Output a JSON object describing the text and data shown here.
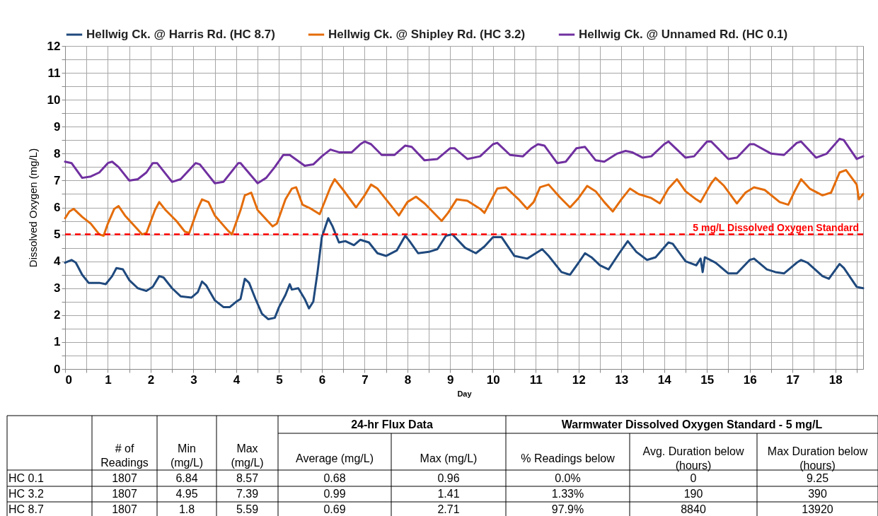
{
  "chart_data": {
    "type": "line",
    "xlabel": "Day",
    "ylabel": "Dissolved Oxygen  (mg/L)",
    "xlim": [
      0,
      18.65
    ],
    "ylim": [
      0,
      12
    ],
    "xticks": [
      0,
      {
        "value": 0.5,
        "label": null
      },
      1,
      {
        "value": 1.5,
        "label": null
      },
      2,
      {
        "value": 2.5,
        "label": null
      },
      3,
      {
        "value": 3.5,
        "label": null
      },
      4,
      {
        "value": 4.5,
        "label": null
      },
      5,
      {
        "value": 5.5,
        "label": null
      },
      6,
      {
        "value": 6.5,
        "label": null
      },
      7,
      {
        "value": 7.5,
        "label": null
      },
      8,
      {
        "value": 8.5,
        "label": null
      },
      9,
      {
        "value": 9.5,
        "label": null
      },
      10,
      {
        "value": 10.5,
        "label": null
      },
      11,
      {
        "value": 11.5,
        "label": null
      },
      12,
      {
        "value": 12.5,
        "label": null
      },
      13,
      {
        "value": 13.5,
        "label": null
      },
      14,
      {
        "value": 14.5,
        "label": null
      },
      15,
      {
        "value": 15.5,
        "label": null
      },
      16,
      {
        "value": 16.5,
        "label": null
      },
      17,
      {
        "value": 17.5,
        "label": null
      },
      18,
      {
        "value": 18.5,
        "label": null
      }
    ],
    "yticks": [
      0,
      {
        "value": 0.5,
        "label": null
      },
      1,
      {
        "value": 1.5,
        "label": null
      },
      2,
      {
        "value": 2.5,
        "label": null
      },
      3,
      {
        "value": 3.5,
        "label": null
      },
      4,
      {
        "value": 4.5,
        "label": null
      },
      5,
      {
        "value": 5.5,
        "label": null
      },
      6,
      {
        "value": 6.5,
        "label": null
      },
      7,
      {
        "value": 7.5,
        "label": null
      },
      8,
      {
        "value": 8.5,
        "label": null
      },
      9,
      {
        "value": 9.5,
        "label": null
      },
      10,
      {
        "value": 10.5,
        "label": null
      },
      11,
      {
        "value": 11.5,
        "label": null
      },
      12
    ],
    "grid": true,
    "legend": "top",
    "line_style": "solid",
    "marker": "none",
    "series": [
      {
        "name": "Hellwig Ck. @ Harris Rd. (HC 8.7)",
        "color": "#1f497d",
        "x": [
          0,
          0.15,
          0.25,
          0.4,
          0.55,
          0.8,
          0.95,
          1.1,
          1.2,
          1.35,
          1.5,
          1.7,
          1.9,
          2.05,
          2.2,
          2.3,
          2.5,
          2.7,
          2.95,
          3.1,
          3.2,
          3.3,
          3.5,
          3.7,
          3.85,
          4.0,
          4.1,
          4.2,
          4.3,
          4.45,
          4.6,
          4.75,
          4.9,
          5.0,
          5.15,
          5.25,
          5.3,
          5.45,
          5.6,
          5.7,
          5.8,
          5.9,
          6.0,
          6.15,
          6.25,
          6.4,
          6.55,
          6.75,
          6.9,
          7.1,
          7.3,
          7.5,
          7.75,
          7.95,
          8.05,
          8.25,
          8.5,
          8.7,
          8.9,
          9.05,
          9.35,
          9.6,
          9.8,
          10.0,
          10.2,
          10.5,
          10.8,
          11.0,
          11.15,
          11.3,
          11.6,
          11.8,
          12.0,
          12.15,
          12.3,
          12.5,
          12.7,
          12.95,
          13.15,
          13.35,
          13.6,
          13.8,
          14.1,
          14.2,
          14.5,
          14.75,
          14.85,
          14.9,
          14.95,
          15.2,
          15.5,
          15.7,
          16.0,
          16.1,
          16.4,
          16.6,
          16.8,
          17.1,
          17.2,
          17.35,
          17.7,
          17.85,
          18.1,
          18.2,
          18.5,
          18.65
        ],
        "values": [
          3.95,
          4.05,
          3.95,
          3.5,
          3.2,
          3.2,
          3.15,
          3.45,
          3.75,
          3.7,
          3.3,
          3.0,
          2.9,
          3.05,
          3.45,
          3.4,
          3.0,
          2.7,
          2.65,
          2.85,
          3.25,
          3.1,
          2.55,
          2.3,
          2.3,
          2.5,
          2.6,
          3.35,
          3.2,
          2.6,
          2.05,
          1.85,
          1.9,
          2.3,
          2.75,
          3.15,
          2.95,
          3.0,
          2.6,
          2.25,
          2.5,
          3.6,
          4.9,
          5.6,
          5.3,
          4.7,
          4.75,
          4.6,
          4.8,
          4.7,
          4.3,
          4.2,
          4.4,
          4.95,
          4.75,
          4.3,
          4.35,
          4.45,
          4.95,
          5.0,
          4.5,
          4.3,
          4.55,
          4.9,
          4.9,
          4.2,
          4.1,
          4.3,
          4.45,
          4.2,
          3.6,
          3.5,
          3.95,
          4.3,
          4.15,
          3.85,
          3.7,
          4.3,
          4.75,
          4.35,
          4.05,
          4.15,
          4.7,
          4.65,
          4.0,
          3.85,
          4.1,
          3.6,
          4.15,
          3.95,
          3.55,
          3.55,
          4.05,
          4.1,
          3.7,
          3.6,
          3.55,
          3.95,
          4.05,
          3.95,
          3.45,
          3.35,
          3.9,
          3.75,
          3.05,
          3.0
        ]
      },
      {
        "name": "Hellwig Ck. @ Shipley Rd. (HC 3.2)",
        "color": "#e46c0a",
        "x": [
          0,
          0.1,
          0.2,
          0.4,
          0.6,
          0.8,
          0.9,
          1.0,
          1.15,
          1.25,
          1.4,
          1.6,
          1.8,
          1.9,
          2.1,
          2.2,
          2.35,
          2.6,
          2.8,
          2.9,
          3.1,
          3.2,
          3.35,
          3.5,
          3.8,
          3.9,
          4.1,
          4.2,
          4.35,
          4.5,
          4.85,
          4.95,
          5.15,
          5.3,
          5.4,
          5.55,
          5.75,
          5.95,
          6.2,
          6.3,
          6.5,
          6.8,
          7.0,
          7.15,
          7.3,
          7.6,
          7.8,
          8.0,
          8.2,
          8.4,
          8.8,
          8.95,
          9.15,
          9.4,
          9.7,
          9.8,
          10.0,
          10.1,
          10.3,
          10.6,
          10.8,
          10.95,
          11.1,
          11.3,
          11.55,
          11.8,
          12.0,
          12.2,
          12.4,
          12.6,
          12.8,
          13.0,
          13.2,
          13.4,
          13.7,
          13.9,
          14.1,
          14.3,
          14.5,
          14.75,
          14.85,
          15.1,
          15.2,
          15.4,
          15.7,
          15.9,
          16.1,
          16.35,
          16.7,
          16.9,
          17.05,
          17.2,
          17.4,
          17.7,
          17.9,
          18.1,
          18.25,
          18.5,
          18.55,
          18.65
        ],
        "values": [
          5.6,
          5.85,
          5.95,
          5.65,
          5.4,
          5.0,
          4.95,
          5.4,
          5.95,
          6.05,
          5.7,
          5.35,
          5.0,
          5.05,
          5.9,
          6.2,
          5.9,
          5.5,
          5.1,
          5.05,
          5.95,
          6.3,
          6.2,
          5.7,
          5.15,
          5.0,
          5.9,
          6.45,
          6.55,
          5.9,
          5.3,
          5.4,
          6.3,
          6.7,
          6.75,
          6.1,
          5.95,
          5.75,
          6.75,
          7.05,
          6.65,
          6.0,
          6.45,
          6.85,
          6.7,
          6.1,
          5.7,
          6.2,
          6.4,
          6.15,
          5.5,
          5.8,
          6.3,
          6.25,
          5.95,
          5.8,
          6.4,
          6.7,
          6.75,
          6.3,
          5.95,
          6.2,
          6.75,
          6.85,
          6.4,
          6.0,
          6.35,
          6.8,
          6.6,
          6.2,
          5.85,
          6.3,
          6.7,
          6.5,
          6.35,
          6.15,
          6.7,
          7.05,
          6.6,
          6.3,
          6.2,
          6.9,
          7.1,
          6.8,
          6.15,
          6.55,
          6.75,
          6.65,
          6.2,
          6.1,
          6.6,
          7.05,
          6.7,
          6.45,
          6.55,
          7.3,
          7.39,
          6.85,
          6.3,
          6.5
        ]
      },
      {
        "name": "Hellwig Ck. @ Unnamed Rd. (HC 0.1)",
        "color": "#7030a0",
        "x": [
          0,
          0.15,
          0.4,
          0.6,
          0.8,
          1.0,
          1.1,
          1.25,
          1.5,
          1.7,
          1.9,
          2.05,
          2.15,
          2.5,
          2.7,
          3.05,
          3.15,
          3.5,
          3.7,
          4.05,
          4.1,
          4.5,
          4.7,
          4.9,
          5.1,
          5.25,
          5.6,
          5.8,
          6.0,
          6.2,
          6.4,
          6.7,
          6.9,
          7.0,
          7.15,
          7.4,
          7.7,
          7.95,
          8.1,
          8.4,
          8.7,
          9.0,
          9.1,
          9.4,
          9.7,
          10.0,
          10.1,
          10.4,
          10.7,
          10.9,
          11.05,
          11.2,
          11.5,
          11.7,
          11.95,
          12.15,
          12.4,
          12.6,
          12.9,
          13.1,
          13.25,
          13.5,
          13.7,
          14.0,
          14.1,
          14.5,
          14.7,
          15.0,
          15.1,
          15.5,
          15.7,
          16.0,
          16.1,
          16.5,
          16.8,
          17.1,
          17.2,
          17.55,
          17.8,
          18.1,
          18.2,
          18.5,
          18.65
        ],
        "values": [
          7.7,
          7.65,
          7.1,
          7.15,
          7.3,
          7.65,
          7.7,
          7.5,
          7.0,
          7.05,
          7.3,
          7.65,
          7.65,
          6.95,
          7.05,
          7.65,
          7.6,
          6.9,
          6.95,
          7.65,
          7.65,
          6.9,
          7.1,
          7.5,
          7.95,
          7.95,
          7.55,
          7.6,
          7.9,
          8.15,
          8.05,
          8.05,
          8.35,
          8.45,
          8.35,
          7.95,
          7.95,
          8.3,
          8.25,
          7.75,
          7.8,
          8.2,
          8.2,
          7.8,
          7.9,
          8.35,
          8.4,
          7.95,
          7.9,
          8.2,
          8.35,
          8.3,
          7.65,
          7.7,
          8.2,
          8.25,
          7.75,
          7.7,
          8.0,
          8.1,
          8.05,
          7.85,
          7.9,
          8.35,
          8.45,
          7.85,
          7.9,
          8.45,
          8.45,
          7.8,
          7.85,
          8.35,
          8.35,
          8.0,
          7.95,
          8.4,
          8.45,
          7.85,
          8.0,
          8.55,
          8.5,
          7.8,
          7.9
        ]
      }
    ],
    "ref_lines": [
      {
        "axis": "y",
        "value": 5,
        "label": "5 mg/L Dissolved Oxygen Standard",
        "color": "#ff0000",
        "line_style": "dashed"
      }
    ],
    "annotations": [
      "24-hr Flux Data",
      "Warmwater Dissolved Oxygen Standard - 5 mg/L",
      "# of\nReadings",
      "Min\n(mg/L)",
      "Max\n(mg/L)",
      "Average (mg/L)",
      "Max (mg/L)",
      "% Readings below",
      "Avg. Duration below\n(hours)",
      "Max Duration below\n(hours)",
      "HC 0.1",
      "1807",
      "6.84",
      "8.57",
      "0.68",
      "0.96",
      "0.0%",
      "0",
      "9.25",
      "HC 3.2",
      "1807",
      "4.95",
      "7.39",
      "0.99",
      "1.41",
      "1.33%",
      "190",
      "390",
      "HC 8.7",
      "1807",
      "1.8",
      "5.59",
      "0.69",
      "2.71",
      "97.9%",
      "8840",
      "13920"
    ]
  }
}
